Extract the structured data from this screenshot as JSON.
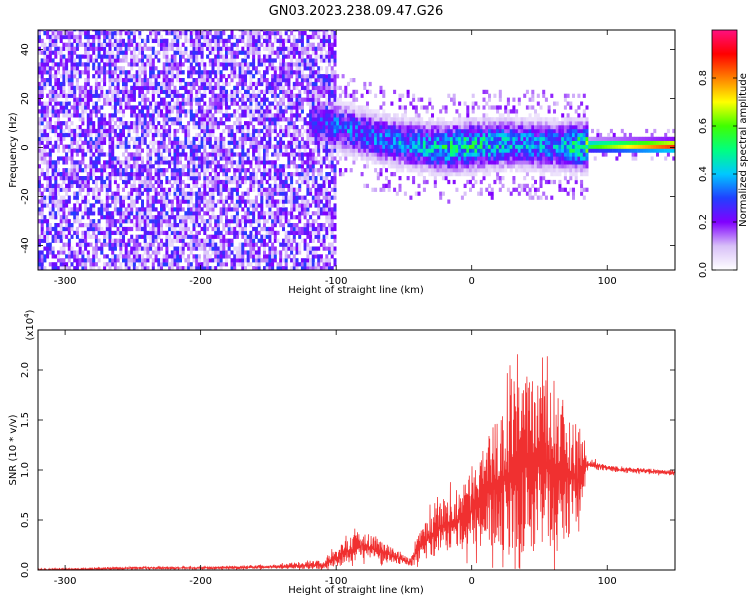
{
  "title": "GN03.2023.238.09.47.G26",
  "chart_data": [
    {
      "type": "heatmap",
      "xlabel": "Height of straight line (km)",
      "ylabel": "Frequency (Hz)",
      "xlim": [
        -320,
        150
      ],
      "ylim": [
        -50,
        48
      ],
      "xticks": [
        -300,
        -200,
        -100,
        0,
        100
      ],
      "yticks": [
        -40,
        -20,
        0,
        20,
        40
      ],
      "colorbar": {
        "label": "Normalized spectral amplitude",
        "range": [
          0,
          1
        ],
        "ticks": [
          "0.0",
          "0.2",
          "0.4",
          "0.6",
          "0.8"
        ],
        "tick_values": [
          0,
          0.2,
          0.4,
          0.6,
          0.8
        ],
        "colors": [
          "#ffffff",
          "#d8c0f8",
          "#8000ff",
          "#2040ff",
          "#00c8ff",
          "#00ff80",
          "#40ff00",
          "#ffff00",
          "#ff8000",
          "#ff0000",
          "#ff1080"
        ]
      },
      "regions": [
        {
          "x_range": [
            -320,
            -100
          ],
          "pattern": "broadband noise over full frequency range",
          "amplitude": [
            0.05,
            0.3
          ]
        },
        {
          "x_range": [
            -120,
            150
          ],
          "pattern": "narrow band near 0 Hz",
          "center_hz": [
            10,
            8,
            3,
            0,
            -1,
            0,
            1,
            0,
            0,
            0
          ],
          "center_x": [
            -120,
            -100,
            -70,
            -40,
            -20,
            0,
            30,
            60,
            90,
            150
          ],
          "peak_amplitude": [
            0.25,
            0.35,
            0.35,
            0.4,
            0.5,
            0.5,
            0.4,
            0.4,
            0.6,
            0.9
          ]
        }
      ]
    },
    {
      "type": "line",
      "xlabel": "Height of straight line (km)",
      "ylabel": "SNR (10 * v/v)",
      "scale_note": "(x10",
      "scale_exp": "4",
      "scale_close": ")",
      "xlim": [
        -320,
        150
      ],
      "ylim": [
        0,
        2.4
      ],
      "xticks": [
        -300,
        -200,
        -100,
        0,
        100
      ],
      "yticks": [
        "0.0",
        "0.5",
        "1.0",
        "1.5",
        "2.0"
      ],
      "ytick_values": [
        0,
        0.5,
        1.0,
        1.5,
        2.0
      ],
      "color": "#f03030",
      "series": [
        {
          "x": [
            -320,
            -250,
            -200,
            -150,
            -110,
            -100,
            -90,
            -80,
            -70,
            -60,
            -50,
            -45,
            -40,
            -30,
            -20,
            -10,
            0,
            10,
            20,
            30,
            40,
            50,
            60,
            70,
            80,
            85,
            90,
            100,
            110,
            120,
            130,
            140,
            150
          ],
          "y": [
            0.0,
            0.02,
            0.02,
            0.03,
            0.05,
            0.12,
            0.2,
            0.25,
            0.2,
            0.15,
            0.1,
            0.08,
            0.2,
            0.35,
            0.45,
            0.5,
            0.6,
            0.75,
            0.9,
            1.0,
            1.05,
            1.1,
            1.0,
            0.95,
            0.9,
            1.05,
            1.05,
            1.02,
            1.0,
            1.0,
            0.99,
            0.98,
            0.97
          ],
          "spread": [
            0.01,
            0.01,
            0.01,
            0.02,
            0.05,
            0.1,
            0.15,
            0.15,
            0.12,
            0.1,
            0.05,
            0.05,
            0.15,
            0.25,
            0.3,
            0.35,
            0.4,
            0.6,
            0.8,
            0.9,
            1.0,
            1.0,
            0.9,
            0.7,
            0.6,
            0.05,
            0.05,
            0.03,
            0.03,
            0.03,
            0.03,
            0.03,
            0.03
          ]
        }
      ]
    }
  ]
}
